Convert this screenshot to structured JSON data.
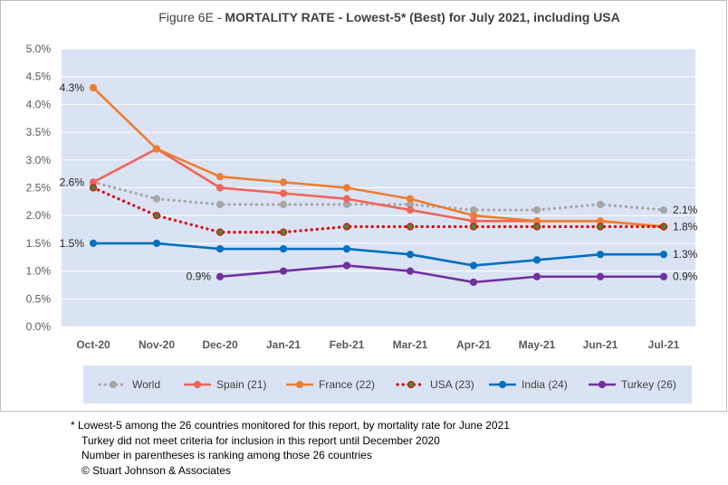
{
  "chart_data": {
    "type": "line",
    "title_prefix": "Figure 6E  - ",
    "title_main": "MORTALITY RATE - Lowest-5* (Best) for July 2021, including USA",
    "categories": [
      "Oct-20",
      "Nov-20",
      "Dec-20",
      "Jan-21",
      "Feb-21",
      "Mar-21",
      "Apr-21",
      "May-21",
      "Jun-21",
      "Jul-21"
    ],
    "y_ticks": [
      "0.0%",
      "0.5%",
      "1.0%",
      "1.5%",
      "2.0%",
      "2.5%",
      "3.0%",
      "3.5%",
      "4.0%",
      "4.5%",
      "5.0%"
    ],
    "ylim": [
      0,
      5
    ],
    "grid": true,
    "legend_position": "bottom",
    "series": [
      {
        "name": "World",
        "color": "#a6a6a6",
        "style": "dotted",
        "values": [
          2.6,
          2.3,
          2.2,
          2.2,
          2.2,
          2.2,
          2.1,
          2.1,
          2.2,
          2.1
        ]
      },
      {
        "name": "Spain (21)",
        "color": "#f0645a",
        "style": "solid",
        "values": [
          2.6,
          3.2,
          2.5,
          2.4,
          2.3,
          2.1,
          1.9,
          1.9,
          1.9,
          1.8
        ]
      },
      {
        "name": "France (22)",
        "color": "#ed7d31",
        "style": "solid",
        "values": [
          4.3,
          3.2,
          2.7,
          2.6,
          2.5,
          2.3,
          2.0,
          1.9,
          1.9,
          1.8
        ]
      },
      {
        "name": "USA (23)",
        "color": "#e00000",
        "style": "dotted",
        "values": [
          2.5,
          2.0,
          1.7,
          1.7,
          1.8,
          1.8,
          1.8,
          1.8,
          1.8,
          1.8
        ]
      },
      {
        "name": "India (24)",
        "color": "#0070c0",
        "style": "solid",
        "values": [
          1.5,
          1.5,
          1.4,
          1.4,
          1.4,
          1.3,
          1.1,
          1.2,
          1.3,
          1.3
        ]
      },
      {
        "name": "Turkey (26)",
        "color": "#7030a0",
        "style": "solid",
        "values": [
          null,
          null,
          0.9,
          1.0,
          1.1,
          1.0,
          0.8,
          0.9,
          0.9,
          0.9
        ]
      }
    ],
    "data_labels": [
      {
        "text": "4.3%",
        "series": 2,
        "index": 0,
        "side": "left"
      },
      {
        "text": "2.6%",
        "series": 0,
        "index": 0,
        "side": "left"
      },
      {
        "text": "1.5%",
        "series": 4,
        "index": 0,
        "side": "left"
      },
      {
        "text": "0.9%",
        "series": 5,
        "index": 2,
        "side": "left"
      },
      {
        "text": "2.1%",
        "series": 0,
        "index": 9,
        "side": "right"
      },
      {
        "text": "1.8%",
        "series": 3,
        "index": 9,
        "side": "right"
      },
      {
        "text": "1.3%",
        "series": 4,
        "index": 9,
        "side": "right"
      },
      {
        "text": "0.9%",
        "series": 5,
        "index": 9,
        "side": "right"
      }
    ]
  },
  "footnotes": [
    "* Lowest-5 among the 26 countries monitored for this report, by mortality rate for June 2021",
    "Turkey did not meet criteria for inclusion in this report until December 2020",
    "Number in parentheses is ranking among those 26 countries",
    "© Stuart Johnson & Associates"
  ]
}
